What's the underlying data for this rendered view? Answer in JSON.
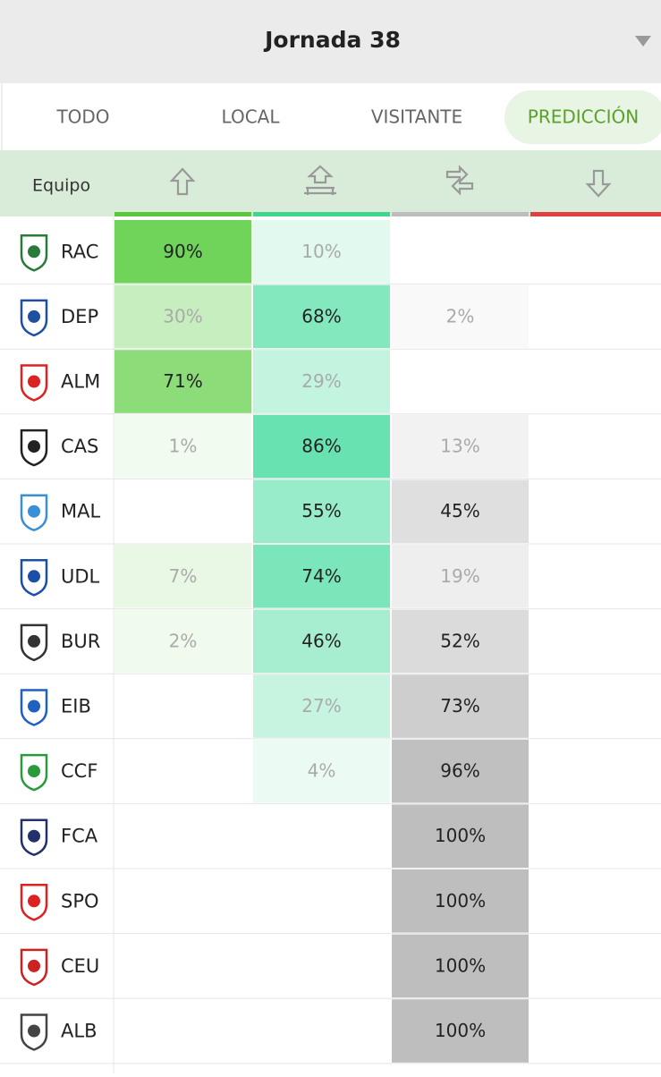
{
  "header": {
    "title": "Jornada 38"
  },
  "tabs": [
    "TODO",
    "LOCAL",
    "VISITANTE",
    "PREDICCIÓN"
  ],
  "table": {
    "team_header": "Equipo",
    "rows": [
      {
        "team": "RAC",
        "cells": [
          "90%",
          "10%",
          null,
          null
        ]
      },
      {
        "team": "DEP",
        "cells": [
          "30%",
          "68%",
          "2%",
          null
        ]
      },
      {
        "team": "ALM",
        "cells": [
          "71%",
          "29%",
          null,
          null
        ]
      },
      {
        "team": "CAS",
        "cells": [
          "1%",
          "86%",
          "13%",
          null
        ]
      },
      {
        "team": "MAL",
        "cells": [
          null,
          "55%",
          "45%",
          null
        ]
      },
      {
        "team": "UDL",
        "cells": [
          "7%",
          "74%",
          "19%",
          null
        ]
      },
      {
        "team": "BUR",
        "cells": [
          "2%",
          "46%",
          "52%",
          null
        ]
      },
      {
        "team": "EIB",
        "cells": [
          null,
          "27%",
          "73%",
          null
        ]
      },
      {
        "team": "CCF",
        "cells": [
          null,
          "4%",
          "96%",
          null
        ]
      },
      {
        "team": "FCA",
        "cells": [
          null,
          null,
          "100%",
          null
        ]
      },
      {
        "team": "SPO",
        "cells": [
          null,
          null,
          "100%",
          null
        ]
      },
      {
        "team": "CEU",
        "cells": [
          null,
          null,
          "100%",
          null
        ]
      },
      {
        "team": "ALB",
        "cells": [
          null,
          null,
          "100%",
          null
        ]
      }
    ]
  }
}
